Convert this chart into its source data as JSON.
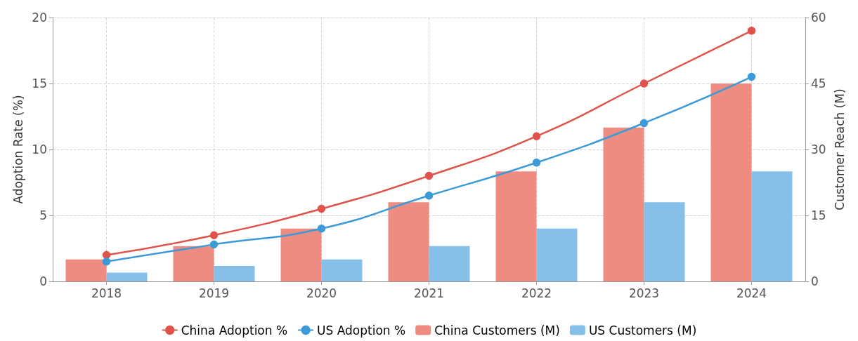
{
  "chart_data": {
    "type": "bar",
    "categories": [
      "2018",
      "2019",
      "2020",
      "2021",
      "2022",
      "2023",
      "2024"
    ],
    "ylabel": "Adoption Rate (%)",
    "y2label": "Customer Reach (M)",
    "ylim": [
      0,
      20
    ],
    "yticks": [
      0,
      5,
      10,
      15,
      20
    ],
    "y2lim": [
      0,
      60
    ],
    "y2ticks": [
      0,
      15,
      30,
      45,
      60
    ],
    "grid": true,
    "legend": "bottom",
    "marker": "circle",
    "series": [
      {
        "name": "China Adoption %",
        "type": "line",
        "color": "#e0534a",
        "values": [
          2,
          3.5,
          5.5,
          8,
          11,
          15,
          19
        ]
      },
      {
        "name": "US Adoption %",
        "type": "line",
        "color": "#3c9ad8",
        "values": [
          1.5,
          2.8,
          4,
          6.5,
          9,
          12,
          15.5
        ]
      },
      {
        "name": "China Customers (M)",
        "axis": "y2",
        "color": "#ee8c82",
        "values": [
          5,
          8,
          12,
          18,
          25,
          35,
          45
        ]
      },
      {
        "name": "US Customers (M)",
        "axis": "y2",
        "color": "#86c0e8",
        "values": [
          2,
          3.5,
          5,
          8,
          12,
          18,
          25
        ]
      }
    ]
  }
}
